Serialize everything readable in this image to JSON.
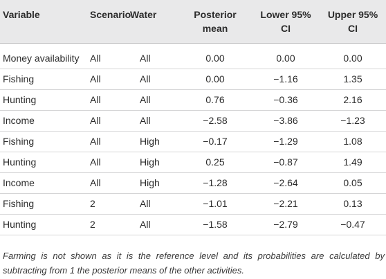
{
  "table": {
    "headers": {
      "variable": "Variable",
      "scenario": "Scenario",
      "water": "Water",
      "posterior_mean_line1": "Posterior",
      "posterior_mean_line2": "mean",
      "lower_line1": "Lower 95%",
      "lower_line2": "CI",
      "upper_line1": "Upper 95%",
      "upper_line2": "CI"
    },
    "rows": [
      {
        "variable": "Money availability",
        "scenario": "All",
        "water": "All",
        "mean": "0.00",
        "lower": "0.00",
        "upper": "0.00"
      },
      {
        "variable": "Fishing",
        "scenario": "All",
        "water": "All",
        "mean": "0.00",
        "lower": "−1.16",
        "upper": "1.35"
      },
      {
        "variable": "Hunting",
        "scenario": "All",
        "water": "All",
        "mean": "0.76",
        "lower": "−0.36",
        "upper": "2.16"
      },
      {
        "variable": "Income",
        "scenario": "All",
        "water": "All",
        "mean": "−2.58",
        "lower": "−3.86",
        "upper": "−1.23"
      },
      {
        "variable": "Fishing",
        "scenario": "All",
        "water": "High",
        "mean": "−0.17",
        "lower": "−1.29",
        "upper": "1.08"
      },
      {
        "variable": "Hunting",
        "scenario": "All",
        "water": "High",
        "mean": "0.25",
        "lower": "−0.87",
        "upper": "1.49"
      },
      {
        "variable": "Income",
        "scenario": "All",
        "water": "High",
        "mean": "−1.28",
        "lower": "−2.64",
        "upper": "0.05"
      },
      {
        "variable": "Fishing",
        "scenario": "2",
        "water": "All",
        "mean": "−1.01",
        "lower": "−2.21",
        "upper": "0.13"
      },
      {
        "variable": "Hunting",
        "scenario": "2",
        "water": "All",
        "mean": "−1.58",
        "lower": "−2.79",
        "upper": "−0.47"
      }
    ]
  },
  "footnote": "Farming is not shown as it is the reference level and its probabilities are calculated by subtracting from 1 the posterior means of the other activities."
}
